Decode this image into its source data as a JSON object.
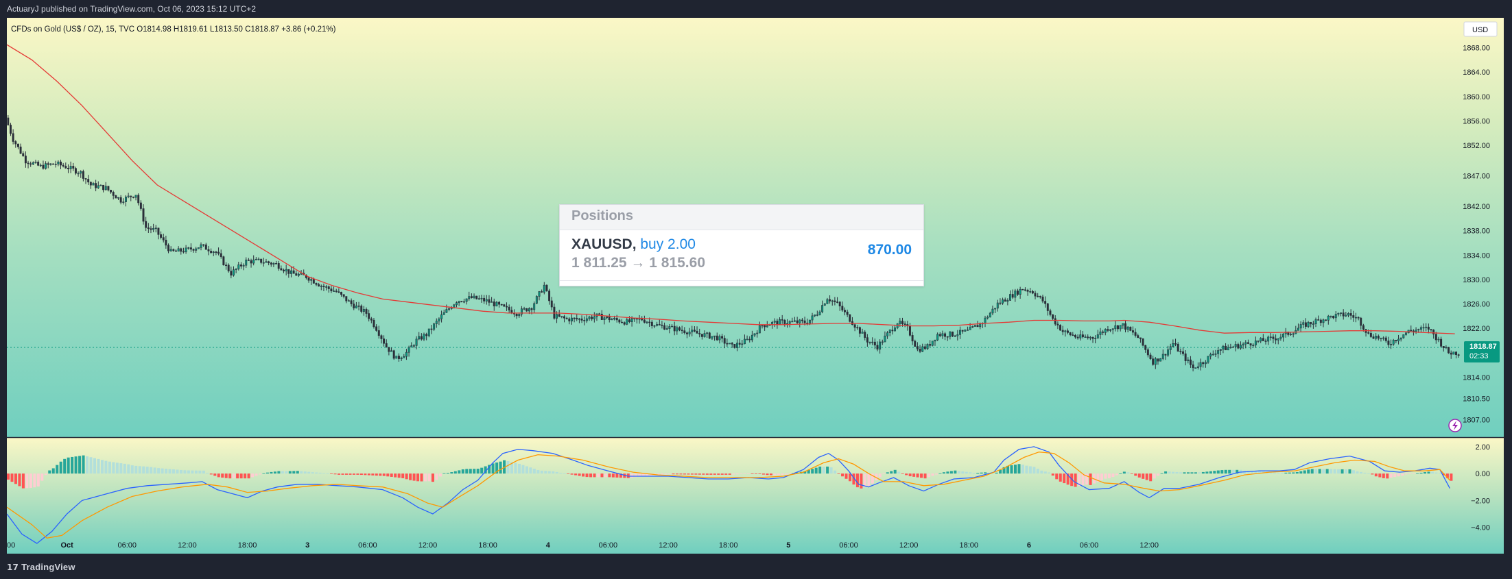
{
  "header": {
    "published": "ActuaryJ published on TradingView.com, Oct 06, 2023 15:12 UTC+2"
  },
  "footer": {
    "brand": "TradingView",
    "logo_icon": "tradingview-logo-icon"
  },
  "legend": {
    "text": "CFDs on Gold (US$ / OZ), 15, TVC  O1814.98  H1819.61  L1813.50  C1818.87  +3.86 (+0.21%)"
  },
  "currency_button": "USD",
  "last_price": {
    "price": "1818.87",
    "countdown": "02:33",
    "color": "#089981"
  },
  "positions": {
    "title": "Positions",
    "symbol": "XAUUSD",
    "side": "buy 2.00",
    "pnl": "870.00",
    "range": "1 811.25 → 1 815.60"
  },
  "colors": {
    "up": "#089981",
    "down": "#f23645",
    "candle": "#2a2e39",
    "ma": "#e53935",
    "macd": "#2962ff",
    "signal": "#ff9800",
    "hist_up": "#26a69a",
    "hist_down": "#ff5252",
    "hist_up_light": "#b2dfdb",
    "hist_down_light": "#ffcdd2",
    "bg_top": "#fbf7c6",
    "bg_bottom": "#70cfbf"
  },
  "chart_data": [
    {
      "type": "candlestick",
      "title": "CFDs on Gold (US$ / OZ), 15, TVC",
      "ylim": [
        1805.5,
        1872.0
      ],
      "y_ticks": [
        1868.0,
        1864.0,
        1860.0,
        1856.0,
        1852.0,
        1847.0,
        1842.0,
        1838.0,
        1834.0,
        1830.0,
        1826.0,
        1822.0,
        1814.0,
        1810.5,
        1807.0
      ],
      "y_tick_labels": [
        "1868.00",
        "1864.00",
        "1860.00",
        "1856.00",
        "1852.00",
        "1847.00",
        "1842.00",
        "1838.00",
        "1834.00",
        "1830.00",
        "1826.00",
        "1822.00",
        "1814.00",
        "1810.50",
        "1807.00"
      ],
      "x_ticks": [
        "00",
        "Oct",
        "06:00",
        "12:00",
        "18:00",
        "3",
        "06:00",
        "12:00",
        "18:00",
        "4",
        "06:00",
        "12:00",
        "18:00",
        "5",
        "06:00",
        "12:00",
        "18:00",
        "6",
        "06:00",
        "12:00"
      ],
      "close_path": [
        [
          0,
          1856.5
        ],
        [
          3,
          1853
        ],
        [
          8,
          1849.5
        ],
        [
          14,
          1848.5
        ],
        [
          20,
          1849
        ],
        [
          24,
          1848.5
        ],
        [
          30,
          1847.5
        ],
        [
          34,
          1845.5
        ],
        [
          40,
          1845
        ],
        [
          46,
          1843
        ],
        [
          52,
          1844
        ],
        [
          56,
          1838.5
        ],
        [
          60,
          1838
        ],
        [
          66,
          1834.5
        ],
        [
          72,
          1834.8
        ],
        [
          78,
          1835.5
        ],
        [
          84,
          1834.5
        ],
        [
          90,
          1831
        ],
        [
          96,
          1833
        ],
        [
          102,
          1833
        ],
        [
          108,
          1832.5
        ],
        [
          114,
          1831
        ],
        [
          120,
          1830.5
        ],
        [
          126,
          1829
        ],
        [
          132,
          1828
        ],
        [
          138,
          1826
        ],
        [
          144,
          1824.5
        ],
        [
          148,
          1822
        ],
        [
          152,
          1819
        ],
        [
          156,
          1817
        ],
        [
          160,
          1818
        ],
        [
          164,
          1820
        ],
        [
          168,
          1821
        ],
        [
          174,
          1824
        ],
        [
          180,
          1826.5
        ],
        [
          186,
          1827
        ],
        [
          192,
          1826.5
        ],
        [
          198,
          1825.5
        ],
        [
          204,
          1824.5
        ],
        [
          210,
          1825.5
        ],
        [
          215,
          1829
        ],
        [
          219,
          1824
        ],
        [
          224,
          1823.5
        ],
        [
          230,
          1823.5
        ],
        [
          236,
          1824
        ],
        [
          242,
          1823.5
        ],
        [
          248,
          1823
        ],
        [
          254,
          1823.5
        ],
        [
          260,
          1822.5
        ],
        [
          266,
          1822
        ],
        [
          272,
          1821.5
        ],
        [
          278,
          1821
        ],
        [
          284,
          1820.5
        ],
        [
          290,
          1819
        ],
        [
          296,
          1820
        ],
        [
          302,
          1822.5
        ],
        [
          308,
          1823
        ],
        [
          314,
          1823
        ],
        [
          320,
          1823
        ],
        [
          324,
          1824.5
        ],
        [
          328,
          1827
        ],
        [
          332,
          1826
        ],
        [
          336,
          1824
        ],
        [
          340,
          1822
        ],
        [
          344,
          1820
        ],
        [
          348,
          1819
        ],
        [
          352,
          1821
        ],
        [
          356,
          1823
        ],
        [
          360,
          1822
        ],
        [
          364,
          1818.5
        ],
        [
          368,
          1819
        ],
        [
          372,
          1821
        ],
        [
          378,
          1821
        ],
        [
          384,
          1821.5
        ],
        [
          390,
          1823
        ],
        [
          396,
          1826
        ],
        [
          402,
          1827.5
        ],
        [
          406,
          1828.5
        ],
        [
          410,
          1828
        ],
        [
          414,
          1826.5
        ],
        [
          418,
          1823.5
        ],
        [
          422,
          1821.5
        ],
        [
          428,
          1820.5
        ],
        [
          434,
          1820.5
        ],
        [
          440,
          1822
        ],
        [
          446,
          1822.5
        ],
        [
          452,
          1820.5
        ],
        [
          458,
          1816.5
        ],
        [
          462,
          1817.5
        ],
        [
          466,
          1819.5
        ],
        [
          470,
          1817.5
        ],
        [
          474,
          1815.5
        ],
        [
          478,
          1816.5
        ],
        [
          484,
          1818.5
        ],
        [
          490,
          1819
        ],
        [
          496,
          1819.5
        ],
        [
          502,
          1820
        ],
        [
          508,
          1820.5
        ],
        [
          514,
          1821.5
        ],
        [
          518,
          1822.5
        ],
        [
          522,
          1823
        ],
        [
          526,
          1823.5
        ],
        [
          530,
          1824
        ],
        [
          536,
          1824.3
        ],
        [
          540,
          1823.5
        ],
        [
          544,
          1821
        ],
        [
          548,
          1820.5
        ],
        [
          552,
          1819.5
        ],
        [
          556,
          1820.5
        ],
        [
          560,
          1821.5
        ],
        [
          564,
          1821.8
        ],
        [
          568,
          1822
        ],
        [
          572,
          1820
        ],
        [
          576,
          1818
        ]
      ],
      "ma_path": [
        [
          0,
          1868.5
        ],
        [
          10,
          1866
        ],
        [
          20,
          1862.5
        ],
        [
          30,
          1858.5
        ],
        [
          40,
          1854
        ],
        [
          50,
          1849.5
        ],
        [
          60,
          1845.5
        ],
        [
          70,
          1843
        ],
        [
          80,
          1840.5
        ],
        [
          90,
          1838
        ],
        [
          100,
          1835.5
        ],
        [
          110,
          1833
        ],
        [
          120,
          1830.5
        ],
        [
          130,
          1829
        ],
        [
          140,
          1827.8
        ],
        [
          150,
          1826.8
        ],
        [
          160,
          1826.3
        ],
        [
          170,
          1825.8
        ],
        [
          180,
          1825.3
        ],
        [
          190,
          1824.8
        ],
        [
          200,
          1824.5
        ],
        [
          210,
          1824.5
        ],
        [
          220,
          1824.5
        ],
        [
          230,
          1824.3
        ],
        [
          240,
          1824
        ],
        [
          250,
          1823.7
        ],
        [
          260,
          1823.5
        ],
        [
          270,
          1823.2
        ],
        [
          280,
          1823
        ],
        [
          290,
          1822.8
        ],
        [
          300,
          1822.6
        ],
        [
          310,
          1822.6
        ],
        [
          320,
          1822.7
        ],
        [
          330,
          1822.8
        ],
        [
          340,
          1822.8
        ],
        [
          350,
          1822.6
        ],
        [
          360,
          1822.4
        ],
        [
          370,
          1822.4
        ],
        [
          380,
          1822.5
        ],
        [
          390,
          1822.8
        ],
        [
          400,
          1823
        ],
        [
          410,
          1823.3
        ],
        [
          420,
          1823.3
        ],
        [
          430,
          1823.2
        ],
        [
          440,
          1823.2
        ],
        [
          446,
          1823.3
        ],
        [
          456,
          1823
        ],
        [
          466,
          1822.4
        ],
        [
          476,
          1821.7
        ],
        [
          486,
          1821.2
        ],
        [
          496,
          1821.3
        ],
        [
          506,
          1821.3
        ],
        [
          516,
          1821.4
        ],
        [
          526,
          1821.5
        ],
        [
          536,
          1821.6
        ],
        [
          546,
          1821.6
        ],
        [
          556,
          1821.5
        ],
        [
          566,
          1821.3
        ],
        [
          578,
          1821.1
        ]
      ],
      "x_range": [
        0,
        580
      ]
    },
    {
      "type": "macd",
      "ylim": [
        -5.6,
        2.4
      ],
      "y_ticks": [
        2.0,
        0.0,
        -2.0,
        -4.0
      ],
      "y_tick_labels": [
        "2.00",
        "0.00",
        "−2.00",
        "−4.00"
      ],
      "macd": [
        [
          0,
          -3
        ],
        [
          6,
          -4.5
        ],
        [
          12,
          -5.2
        ],
        [
          18,
          -4.3
        ],
        [
          24,
          -3
        ],
        [
          30,
          -2
        ],
        [
          40,
          -1.5
        ],
        [
          48,
          -1.1
        ],
        [
          56,
          -0.9
        ],
        [
          64,
          -0.8
        ],
        [
          72,
          -0.7
        ],
        [
          78,
          -0.6
        ],
        [
          84,
          -1.2
        ],
        [
          90,
          -1.5
        ],
        [
          96,
          -1.8
        ],
        [
          102,
          -1.3
        ],
        [
          108,
          -1.0
        ],
        [
          116,
          -0.8
        ],
        [
          124,
          -0.8
        ],
        [
          132,
          -0.9
        ],
        [
          140,
          -1.0
        ],
        [
          150,
          -1.2
        ],
        [
          158,
          -1.8
        ],
        [
          164,
          -2.5
        ],
        [
          170,
          -3
        ],
        [
          176,
          -2.2
        ],
        [
          182,
          -1.2
        ],
        [
          188,
          -0.5
        ],
        [
          194,
          0.8
        ],
        [
          198,
          1.5
        ],
        [
          204,
          1.8
        ],
        [
          210,
          1.7
        ],
        [
          218,
          1.5
        ],
        [
          226,
          1.0
        ],
        [
          232,
          0.6
        ],
        [
          240,
          0.2
        ],
        [
          248,
          -0.2
        ],
        [
          256,
          -0.2
        ],
        [
          264,
          -0.2
        ],
        [
          272,
          -0.3
        ],
        [
          280,
          -0.4
        ],
        [
          288,
          -0.4
        ],
        [
          296,
          -0.3
        ],
        [
          304,
          -0.4
        ],
        [
          310,
          -0.3
        ],
        [
          318,
          0.3
        ],
        [
          324,
          1.2
        ],
        [
          328,
          1.5
        ],
        [
          332,
          1.0
        ],
        [
          336,
          0.2
        ],
        [
          340,
          -0.8
        ],
        [
          344,
          -1.0
        ],
        [
          348,
          -0.7
        ],
        [
          354,
          -0.3
        ],
        [
          360,
          -0.9
        ],
        [
          366,
          -1.3
        ],
        [
          372,
          -0.8
        ],
        [
          378,
          -0.4
        ],
        [
          386,
          -0.3
        ],
        [
          394,
          0.1
        ],
        [
          398,
          1.0
        ],
        [
          404,
          1.8
        ],
        [
          410,
          2.0
        ],
        [
          416,
          1.6
        ],
        [
          420,
          0.6
        ],
        [
          426,
          -0.6
        ],
        [
          432,
          -1.2
        ],
        [
          440,
          -1.1
        ],
        [
          446,
          -0.6
        ],
        [
          452,
          -1.4
        ],
        [
          456,
          -1.8
        ],
        [
          462,
          -1.1
        ],
        [
          468,
          -1.1
        ],
        [
          476,
          -0.8
        ],
        [
          484,
          -0.3
        ],
        [
          492,
          0.1
        ],
        [
          500,
          0.2
        ],
        [
          508,
          0.2
        ],
        [
          514,
          0.3
        ],
        [
          520,
          0.8
        ],
        [
          528,
          1.1
        ],
        [
          536,
          1.3
        ],
        [
          544,
          0.9
        ],
        [
          550,
          0.2
        ],
        [
          556,
          0.1
        ],
        [
          562,
          0.2
        ],
        [
          568,
          0.4
        ],
        [
          572,
          0.3
        ],
        [
          576,
          -1.1
        ]
      ],
      "signal": [
        [
          0,
          -2.5
        ],
        [
          10,
          -3.8
        ],
        [
          16,
          -4.8
        ],
        [
          22,
          -4.6
        ],
        [
          30,
          -3.5
        ],
        [
          40,
          -2.5
        ],
        [
          50,
          -1.7
        ],
        [
          60,
          -1.3
        ],
        [
          70,
          -1.0
        ],
        [
          80,
          -0.8
        ],
        [
          88,
          -1.0
        ],
        [
          96,
          -1.4
        ],
        [
          104,
          -1.3
        ],
        [
          112,
          -1.1
        ],
        [
          122,
          -0.9
        ],
        [
          132,
          -0.8
        ],
        [
          140,
          -0.9
        ],
        [
          150,
          -1.0
        ],
        [
          160,
          -1.5
        ],
        [
          168,
          -2.2
        ],
        [
          174,
          -2.5
        ],
        [
          180,
          -1.8
        ],
        [
          188,
          -0.9
        ],
        [
          196,
          0.2
        ],
        [
          204,
          1.0
        ],
        [
          212,
          1.4
        ],
        [
          220,
          1.3
        ],
        [
          230,
          1.0
        ],
        [
          240,
          0.5
        ],
        [
          250,
          0.1
        ],
        [
          260,
          -0.1
        ],
        [
          270,
          -0.2
        ],
        [
          280,
          -0.3
        ],
        [
          290,
          -0.3
        ],
        [
          300,
          -0.3
        ],
        [
          310,
          -0.2
        ],
        [
          318,
          0.1
        ],
        [
          326,
          0.8
        ],
        [
          332,
          1.1
        ],
        [
          338,
          0.7
        ],
        [
          344,
          0.0
        ],
        [
          350,
          -0.6
        ],
        [
          358,
          -0.6
        ],
        [
          366,
          -0.9
        ],
        [
          374,
          -0.8
        ],
        [
          382,
          -0.5
        ],
        [
          390,
          -0.2
        ],
        [
          398,
          0.4
        ],
        [
          406,
          1.2
        ],
        [
          412,
          1.6
        ],
        [
          418,
          1.5
        ],
        [
          424,
          0.8
        ],
        [
          430,
          -0.1
        ],
        [
          438,
          -0.7
        ],
        [
          446,
          -0.8
        ],
        [
          454,
          -1.1
        ],
        [
          460,
          -1.3
        ],
        [
          468,
          -1.2
        ],
        [
          476,
          -0.9
        ],
        [
          486,
          -0.5
        ],
        [
          494,
          -0.1
        ],
        [
          504,
          0.1
        ],
        [
          514,
          0.2
        ],
        [
          522,
          0.5
        ],
        [
          530,
          0.8
        ],
        [
          538,
          1.0
        ],
        [
          546,
          0.9
        ],
        [
          552,
          0.5
        ],
        [
          558,
          0.2
        ],
        [
          566,
          0.2
        ],
        [
          572,
          0.3
        ],
        [
          576,
          -0.5
        ]
      ]
    }
  ]
}
